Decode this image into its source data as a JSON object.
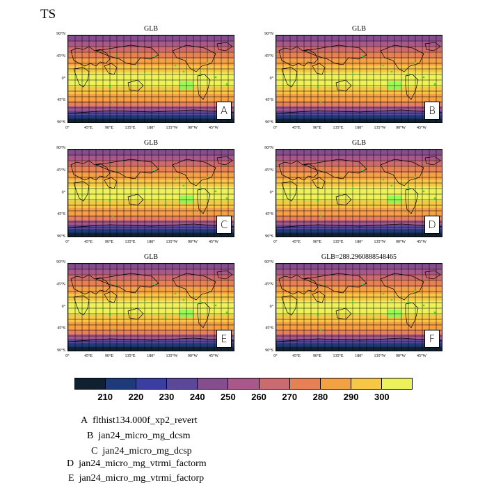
{
  "title": "TS",
  "lat_labels": [
    "90°N",
    "45°N",
    "0°",
    "45°S",
    "90°S"
  ],
  "lon_labels": [
    "0°",
    "45°E",
    "90°E",
    "135°E",
    "180°",
    "135°W",
    "90°W",
    "45°W"
  ],
  "panels": [
    {
      "title": "GLB",
      "letter": "A"
    },
    {
      "title": "GLB",
      "letter": "B"
    },
    {
      "title": "GLB",
      "letter": "C"
    },
    {
      "title": "GLB",
      "letter": "D"
    },
    {
      "title": "GLB",
      "letter": "E"
    },
    {
      "title": "GLB=288.2960888548465",
      "letter": "F"
    }
  ],
  "colorbar": {
    "colors": [
      "#0f2030",
      "#1f3a78",
      "#3a3ea0",
      "#5c4898",
      "#844d8e",
      "#a8588a",
      "#cc6a70",
      "#e88055",
      "#f4a045",
      "#f7c845",
      "#eef25a"
    ],
    "labels": [
      "210",
      "220",
      "230",
      "240",
      "250",
      "260",
      "270",
      "280",
      "290",
      "300"
    ]
  },
  "legend": [
    {
      "letter": "A",
      "name": "flthist134.000f_xp2_revert"
    },
    {
      "letter": "B",
      "name": "jan24_micro_mg_dcsm"
    },
    {
      "letter": "C",
      "name": "jan24_micro_mg_dcsp"
    },
    {
      "letter": "D",
      "name": "jan24_micro_mg_vtrmi_factorm"
    },
    {
      "letter": "E",
      "name": "jan24_micro_mg_vtrmi_factorp"
    }
  ]
}
